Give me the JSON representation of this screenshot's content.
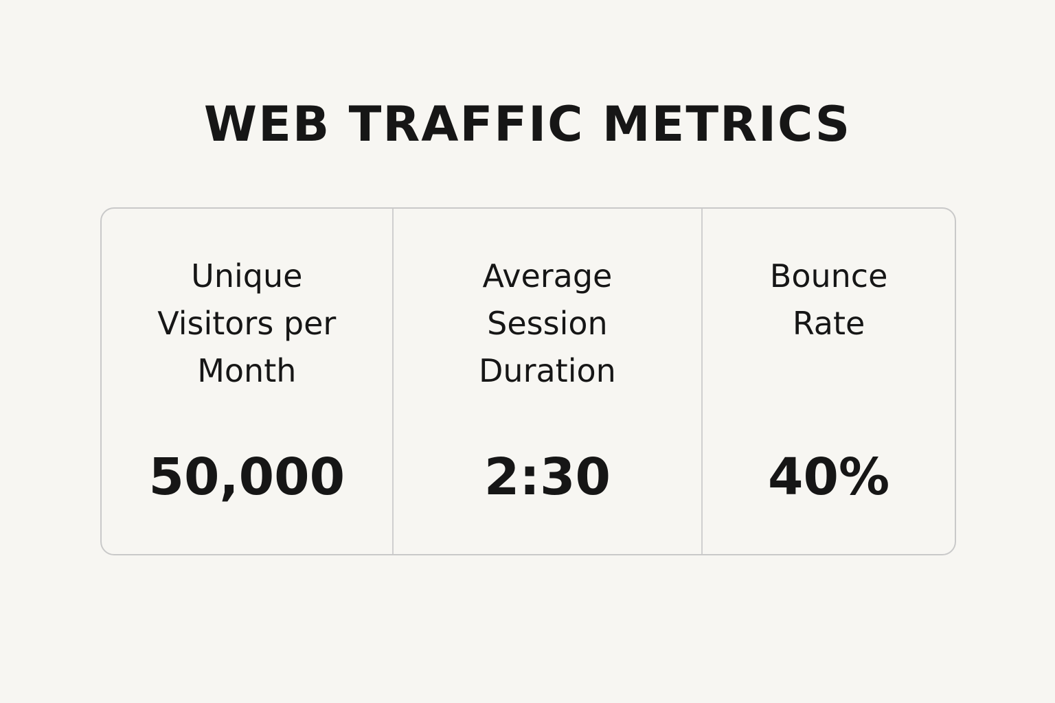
{
  "header": {
    "title": "WEB TRAFFIC METRICS"
  },
  "metrics": [
    {
      "label": "Unique Visitors per Month",
      "value": "50,000"
    },
    {
      "label": "Average Session Duration",
      "value": "2:30"
    },
    {
      "label": "Bounce Rate",
      "value": "40%"
    }
  ]
}
